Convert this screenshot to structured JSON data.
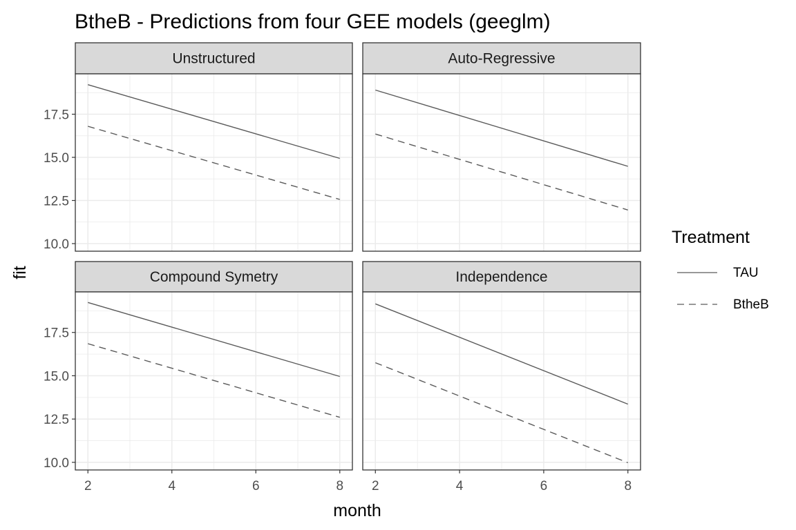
{
  "chart_data": {
    "type": "line",
    "title": "BtheB - Predictions from four GEE models (geeglm)",
    "xlabel": "month",
    "ylabel": "fit",
    "xlim": [
      1.7,
      8.3
    ],
    "ylim": [
      9.56,
      19.84
    ],
    "x_ticks": [
      2,
      4,
      6,
      8
    ],
    "x_tick_labels": [
      "2",
      "4",
      "6",
      "8"
    ],
    "y_ticks": [
      10,
      12.5,
      15,
      17.5
    ],
    "y_tick_labels": [
      "10.0",
      "12.5",
      "15.0",
      "17.5"
    ],
    "grid": true,
    "legend_position": "right",
    "legend": {
      "title": "Treatment",
      "entries": [
        {
          "label": "TAU",
          "linetype": "solid"
        },
        {
          "label": "BtheB",
          "linetype": "dashed"
        }
      ]
    },
    "colors": {
      "line": "#5a5a5a",
      "strip_fill": "#d9d9d9",
      "grid": "#ebebeb",
      "border": "#333333"
    },
    "panels": [
      {
        "strip": "Unstructured",
        "series": [
          {
            "name": "TAU",
            "x": [
              2,
              8
            ],
            "y": [
              19.21,
              14.94
            ]
          },
          {
            "name": "BtheB",
            "x": [
              2,
              8
            ],
            "y": [
              16.8,
              12.56
            ]
          }
        ]
      },
      {
        "strip": "Auto-Regressive",
        "series": [
          {
            "name": "TAU",
            "x": [
              2,
              8
            ],
            "y": [
              18.9,
              14.48
            ]
          },
          {
            "name": "BtheB",
            "x": [
              2,
              8
            ],
            "y": [
              16.35,
              11.95
            ]
          }
        ]
      },
      {
        "strip": "Compound Symetry",
        "series": [
          {
            "name": "TAU",
            "x": [
              2,
              8
            ],
            "y": [
              19.23,
              14.96
            ]
          },
          {
            "name": "BtheB",
            "x": [
              2,
              8
            ],
            "y": [
              16.85,
              12.6
            ]
          }
        ]
      },
      {
        "strip": "Independence",
        "series": [
          {
            "name": "TAU",
            "x": [
              2,
              8
            ],
            "y": [
              19.15,
              13.36
            ]
          },
          {
            "name": "BtheB",
            "x": [
              2,
              8
            ],
            "y": [
              15.75,
              9.98
            ]
          }
        ]
      }
    ]
  }
}
